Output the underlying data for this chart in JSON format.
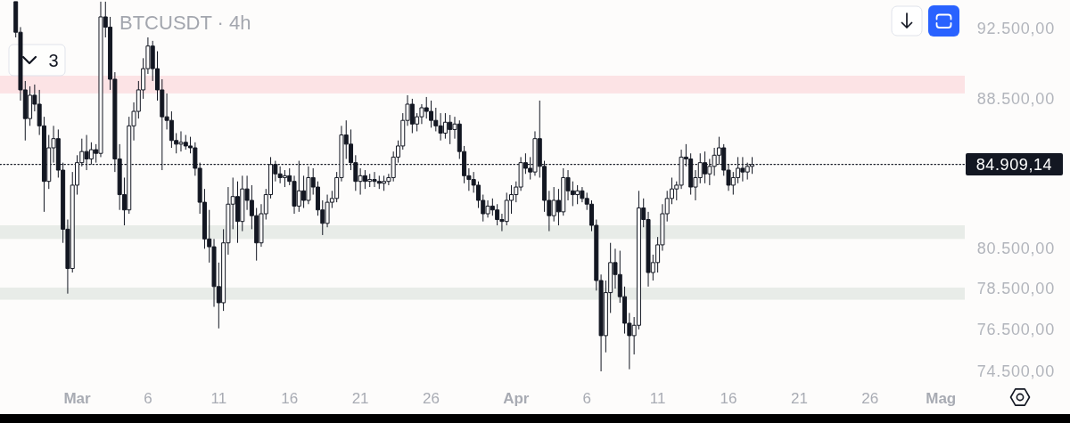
{
  "chart_data": {
    "type": "candlestick",
    "title": "BTCUSDT · 4h",
    "color": "#131722",
    "log": "y",
    "xlim": [
      "--02-23T13:15",
      "--05-02T21:00"
    ],
    "ylim": [
      74500,
      94200
    ],
    "xticks": [
      {
        "value": "--03-01",
        "label": "Mar"
      },
      {
        "value": "--03-06",
        "label": "6"
      },
      {
        "value": "--03-11",
        "label": "11"
      },
      {
        "value": "--03-16",
        "label": "16"
      },
      {
        "value": "--03-21",
        "label": "21"
      },
      {
        "value": "--03-26",
        "label": "26"
      },
      {
        "value": "--04-01",
        "label": "Apr"
      },
      {
        "value": "--04-06",
        "label": "6"
      },
      {
        "value": "--04-11",
        "label": "11"
      },
      {
        "value": "--04-16",
        "label": "16"
      },
      {
        "value": "--04-21",
        "label": "21"
      },
      {
        "value": "--04-26",
        "label": "26"
      },
      {
        "value": "--05-01",
        "label": "Mag"
      }
    ],
    "yticks": [
      {
        "value": 92500,
        "label": "92.500,00"
      },
      {
        "value": 88500,
        "label": "88.500,00"
      },
      {
        "value": 80500,
        "label": "80.500,00"
      },
      {
        "value": 78500,
        "label": "78.500,00"
      },
      {
        "value": 76500,
        "label": "76.500,00"
      },
      {
        "value": 74500,
        "label": "74.500,00"
      }
    ],
    "bands": [
      {
        "axis": "y",
        "from": 88800,
        "to": 89800,
        "color": "#fce3e5"
      },
      {
        "axis": "y",
        "from": 81000,
        "to": 81700,
        "color": "#e8ece8"
      },
      {
        "axis": "y",
        "from": 77950,
        "to": 78550,
        "color": "#e8ece8"
      }
    ],
    "ref_lines": [
      {
        "axis": "y",
        "value": 84909.14,
        "label": "84.909,14",
        "color": "#131722",
        "line_style": "dotted"
      }
    ],
    "annotations": [
      "3"
    ],
    "x": [
      "--02-24T16:00",
      "--02-25T00:00",
      "--02-25T08:00",
      "--02-25T16:00",
      "--02-26T00:00",
      "--02-26T08:00",
      "--02-26T16:00",
      "--02-27T00:00",
      "--02-27T08:00",
      "--02-27T16:00",
      "--02-28T00:00",
      "--02-28T08:00",
      "--02-28T16:00",
      "--03-01T00:00",
      "--03-01T08:00",
      "--03-01T16:00",
      "--03-02T00:00",
      "--03-02T08:00",
      "--03-02T16:00",
      "--03-03T00:00",
      "--03-03T08:00",
      "--03-03T16:00",
      "--03-04T00:00",
      "--03-04T08:00",
      "--03-04T16:00",
      "--03-05T00:00",
      "--03-05T08:00",
      "--03-05T16:00",
      "--03-06T00:00",
      "--03-06T08:00",
      "--03-06T16:00",
      "--03-07T00:00",
      "--03-07T08:00",
      "--03-07T16:00",
      "--03-08T00:00",
      "--03-08T08:00",
      "--03-08T16:00",
      "--03-09T00:00",
      "--03-09T08:00",
      "--03-09T16:00",
      "--03-10T00:00",
      "--03-10T08:00",
      "--03-10T16:00",
      "--03-11T00:00",
      "--03-11T08:00",
      "--03-11T16:00",
      "--03-12T00:00",
      "--03-12T08:00",
      "--03-12T16:00",
      "--03-13T00:00",
      "--03-13T08:00",
      "--03-13T16:00",
      "--03-14T00:00",
      "--03-14T08:00",
      "--03-14T16:00",
      "--03-15T00:00",
      "--03-15T08:00",
      "--03-15T16:00",
      "--03-16T00:00",
      "--03-16T08:00",
      "--03-16T16:00",
      "--03-17T00:00",
      "--03-17T08:00",
      "--03-17T16:00",
      "--03-18T00:00",
      "--03-18T08:00",
      "--03-18T16:00",
      "--03-19T00:00",
      "--03-19T08:00",
      "--03-19T16:00",
      "--03-20T00:00",
      "--03-20T08:00",
      "--03-20T16:00",
      "--03-21T00:00",
      "--03-21T08:00",
      "--03-21T16:00",
      "--03-22T00:00",
      "--03-22T08:00",
      "--03-22T16:00",
      "--03-23T00:00",
      "--03-23T08:00",
      "--03-23T16:00",
      "--03-24T00:00",
      "--03-24T08:00",
      "--03-24T16:00",
      "--03-25T00:00",
      "--03-25T08:00",
      "--03-25T16:00",
      "--03-26T00:00",
      "--03-26T08:00",
      "--03-26T16:00",
      "--03-27T00:00",
      "--03-27T08:00",
      "--03-27T16:00",
      "--03-28T00:00",
      "--03-28T08:00",
      "--03-28T16:00",
      "--03-29T00:00",
      "--03-29T08:00",
      "--03-29T16:00",
      "--03-30T00:00",
      "--03-30T08:00",
      "--03-30T16:00",
      "--03-31T00:00",
      "--03-31T08:00",
      "--03-31T16:00",
      "--04-01T00:00",
      "--04-01T08:00",
      "--04-01T16:00",
      "--04-02T00:00",
      "--04-02T08:00",
      "--04-02T16:00",
      "--04-03T00:00",
      "--04-03T08:00",
      "--04-03T16:00",
      "--04-04T00:00",
      "--04-04T08:00",
      "--04-04T16:00",
      "--04-05T00:00",
      "--04-05T08:00",
      "--04-05T16:00",
      "--04-06T00:00",
      "--04-06T08:00",
      "--04-06T16:00",
      "--04-07T00:00",
      "--04-07T08:00",
      "--04-07T16:00",
      "--04-08T00:00",
      "--04-08T08:00",
      "--04-08T16:00",
      "--04-09T00:00",
      "--04-09T08:00",
      "--04-09T16:00",
      "--04-10T00:00",
      "--04-10T08:00",
      "--04-10T16:00",
      "--04-11T00:00",
      "--04-11T08:00",
      "--04-11T16:00",
      "--04-12T00:00",
      "--04-12T08:00",
      "--04-12T16:00",
      "--04-13T00:00",
      "--04-13T08:00",
      "--04-13T16:00",
      "--04-14T00:00",
      "--04-14T08:00",
      "--04-14T16:00",
      "--04-15T00:00",
      "--04-15T08:00",
      "--04-15T16:00",
      "--04-16T00:00",
      "--04-16T08:00",
      "--04-16T16:00",
      "--04-17T00:00",
      "--04-17T08:00",
      "--04-17T16:00"
    ],
    "ohlc": [
      [
        94100,
        94100,
        92000,
        92300
      ],
      [
        92300,
        92600,
        88400,
        89000
      ],
      [
        89000,
        89500,
        86200,
        87400
      ],
      [
        87400,
        89200,
        87000,
        88700
      ],
      [
        88700,
        89300,
        87800,
        88200
      ],
      [
        88200,
        89000,
        86500,
        87000
      ],
      [
        87000,
        87500,
        82400,
        84000
      ],
      [
        84000,
        86500,
        83600,
        85800
      ],
      [
        85800,
        87000,
        85000,
        86300
      ],
      [
        86300,
        86800,
        84200,
        84600
      ],
      [
        84600,
        85000,
        80800,
        81500
      ],
      [
        81500,
        82000,
        78250,
        79500
      ],
      [
        79500,
        84500,
        79300,
        83800
      ],
      [
        83800,
        85400,
        83300,
        85000
      ],
      [
        85000,
        86300,
        84800,
        85600
      ],
      [
        85600,
        86500,
        84600,
        85200
      ],
      [
        85200,
        86100,
        84900,
        85700
      ],
      [
        85700,
        86000,
        85000,
        85500
      ],
      [
        85500,
        94100,
        85300,
        93200
      ],
      [
        93200,
        94100,
        92000,
        92600
      ],
      [
        92600,
        93200,
        89000,
        89600
      ],
      [
        89600,
        90000,
        84500,
        85200
      ],
      [
        85200,
        86000,
        82500,
        83300
      ],
      [
        83300,
        84200,
        81700,
        82500
      ],
      [
        82500,
        87500,
        82300,
        87000
      ],
      [
        87000,
        88300,
        86200,
        87800
      ],
      [
        87800,
        89500,
        87400,
        89000
      ],
      [
        89000,
        90800,
        88500,
        90200
      ],
      [
        90200,
        92000,
        89900,
        91500
      ],
      [
        91500,
        91800,
        89500,
        90200
      ],
      [
        90200,
        91200,
        88400,
        89000
      ],
      [
        89000,
        89600,
        84600,
        87500
      ],
      [
        87500,
        88800,
        86800,
        87300
      ],
      [
        87300,
        87800,
        85800,
        86200
      ],
      [
        86200,
        86600,
        85500,
        86000
      ],
      [
        86000,
        86700,
        85600,
        86100
      ],
      [
        86100,
        86500,
        85700,
        85900
      ],
      [
        85900,
        86400,
        85500,
        85800
      ],
      [
        85800,
        86100,
        84300,
        84700
      ],
      [
        84700,
        85000,
        82300,
        82900
      ],
      [
        82900,
        83600,
        80500,
        81000
      ],
      [
        81000,
        82500,
        79800,
        80600
      ],
      [
        80600,
        81000,
        77600,
        78600
      ],
      [
        78600,
        79800,
        76550,
        77800
      ],
      [
        77800,
        81500,
        77400,
        80800
      ],
      [
        80800,
        83700,
        80200,
        82800
      ],
      [
        82800,
        84200,
        81500,
        83200
      ],
      [
        83200,
        84000,
        80800,
        81900
      ],
      [
        81900,
        84300,
        81400,
        83600
      ],
      [
        83600,
        84300,
        82500,
        83000
      ],
      [
        83000,
        83800,
        81500,
        82200
      ],
      [
        82200,
        82600,
        79900,
        80800
      ],
      [
        80800,
        82800,
        80600,
        82300
      ],
      [
        82300,
        83600,
        82000,
        83300
      ],
      [
        83300,
        85300,
        83100,
        84900
      ],
      [
        84900,
        85100,
        84000,
        84400
      ],
      [
        84400,
        84800,
        83900,
        84200
      ],
      [
        84200,
        84600,
        83700,
        84300
      ],
      [
        84300,
        84700,
        83800,
        84000
      ],
      [
        84000,
        84300,
        82300,
        82700
      ],
      [
        82700,
        85100,
        82400,
        83500
      ],
      [
        83500,
        84300,
        82600,
        83000
      ],
      [
        83000,
        84800,
        82800,
        84200
      ],
      [
        84200,
        84700,
        83300,
        83700
      ],
      [
        83700,
        84000,
        82200,
        82500
      ],
      [
        82500,
        83000,
        81200,
        81800
      ],
      [
        81800,
        83300,
        81600,
        82900
      ],
      [
        82900,
        83500,
        82600,
        83100
      ],
      [
        83100,
        84500,
        82900,
        84200
      ],
      [
        84200,
        87000,
        84000,
        86500
      ],
      [
        86500,
        87300,
        85200,
        86000
      ],
      [
        86000,
        86800,
        84600,
        85000
      ],
      [
        85000,
        85400,
        83500,
        84000
      ],
      [
        84000,
        84700,
        83300,
        84300
      ],
      [
        84300,
        84600,
        83600,
        84000
      ],
      [
        84000,
        84400,
        83700,
        84100
      ],
      [
        84100,
        84500,
        83700,
        84000
      ],
      [
        84000,
        84300,
        83600,
        83900
      ],
      [
        83900,
        84300,
        83500,
        84000
      ],
      [
        84000,
        84400,
        83800,
        84200
      ],
      [
        84200,
        85600,
        84000,
        85300
      ],
      [
        85300,
        86200,
        85000,
        85900
      ],
      [
        85900,
        87700,
        85700,
        87300
      ],
      [
        87300,
        88700,
        87000,
        88200
      ],
      [
        88200,
        88500,
        86600,
        87100
      ],
      [
        87100,
        87700,
        86700,
        87500
      ],
      [
        87500,
        88200,
        87100,
        88000
      ],
      [
        88000,
        88600,
        87400,
        87800
      ],
      [
        87800,
        88400,
        86900,
        87300
      ],
      [
        87300,
        88000,
        86700,
        87000
      ],
      [
        87000,
        87700,
        86200,
        86600
      ],
      [
        86600,
        87700,
        86300,
        87200
      ],
      [
        87200,
        87600,
        86000,
        86800
      ],
      [
        86800,
        87500,
        86300,
        87100
      ],
      [
        87100,
        87300,
        85200,
        85600
      ],
      [
        85600,
        85900,
        83900,
        84300
      ],
      [
        84300,
        84700,
        83500,
        84100
      ],
      [
        84100,
        84500,
        83400,
        83800
      ],
      [
        83800,
        84000,
        82600,
        83000
      ],
      [
        83000,
        83300,
        81900,
        82300
      ],
      [
        82300,
        83000,
        82100,
        82700
      ],
      [
        82700,
        83100,
        82200,
        82500
      ],
      [
        82500,
        82800,
        81700,
        82000
      ],
      [
        82000,
        82300,
        81400,
        81900
      ],
      [
        81900,
        83400,
        81700,
        83000
      ],
      [
        83000,
        83800,
        82300,
        83300
      ],
      [
        83300,
        84000,
        82900,
        83700
      ],
      [
        83700,
        85300,
        83500,
        85000
      ],
      [
        85000,
        85500,
        84400,
        84700
      ],
      [
        84700,
        85300,
        84100,
        84500
      ],
      [
        84500,
        86700,
        84300,
        86300
      ],
      [
        86300,
        88400,
        84200,
        84800
      ],
      [
        84800,
        85100,
        82400,
        83000
      ],
      [
        83000,
        83500,
        81400,
        82200
      ],
      [
        82200,
        83700,
        81900,
        83000
      ],
      [
        83000,
        83600,
        81700,
        82400
      ],
      [
        82400,
        84700,
        82200,
        84200
      ],
      [
        84200,
        84600,
        83000,
        83500
      ],
      [
        83500,
        84000,
        82700,
        83300
      ],
      [
        83300,
        83800,
        82800,
        83500
      ],
      [
        83500,
        83700,
        82900,
        83100
      ],
      [
        83100,
        83400,
        82500,
        82800
      ],
      [
        82800,
        83000,
        81400,
        81700
      ],
      [
        81700,
        82000,
        78400,
        78900
      ],
      [
        78900,
        79200,
        74500,
        76200
      ],
      [
        76200,
        78900,
        75400,
        78300
      ],
      [
        78300,
        80800,
        77300,
        79800
      ],
      [
        79800,
        80500,
        78500,
        79200
      ],
      [
        79200,
        80400,
        77800,
        78100
      ],
      [
        78100,
        78600,
        76300,
        76800
      ],
      [
        76800,
        77300,
        74600,
        76200
      ],
      [
        76200,
        77100,
        75300,
        76700
      ],
      [
        76700,
        83500,
        76500,
        82600
      ],
      [
        82600,
        83100,
        81600,
        82000
      ],
      [
        82000,
        82400,
        78600,
        79300
      ],
      [
        79300,
        80200,
        78900,
        79800
      ],
      [
        79800,
        81100,
        79300,
        80700
      ],
      [
        80700,
        82800,
        80400,
        82300
      ],
      [
        82300,
        83500,
        81900,
        83100
      ],
      [
        83100,
        84200,
        82800,
        83600
      ],
      [
        83600,
        84000,
        83000,
        83800
      ],
      [
        83800,
        85700,
        83600,
        85300
      ],
      [
        85300,
        86000,
        84800,
        85200
      ],
      [
        85200,
        85500,
        83300,
        83700
      ],
      [
        83700,
        84600,
        83000,
        84200
      ],
      [
        84200,
        85500,
        83900,
        85000
      ],
      [
        85000,
        85600,
        83900,
        84400
      ],
      [
        84400,
        85200,
        83800,
        84800
      ],
      [
        84800,
        85800,
        84300,
        85400
      ],
      [
        85400,
        86400,
        84900,
        85800
      ],
      [
        85800,
        86000,
        84300,
        84600
      ],
      [
        84600,
        84900,
        83500,
        83800
      ],
      [
        83800,
        84500,
        83300,
        84200
      ],
      [
        84200,
        85300,
        83900,
        84700
      ],
      [
        84700,
        85300,
        84000,
        84500
      ],
      [
        84500,
        85000,
        84100,
        84800
      ],
      [
        84800,
        85300,
        84400,
        84900
      ]
    ]
  }
}
